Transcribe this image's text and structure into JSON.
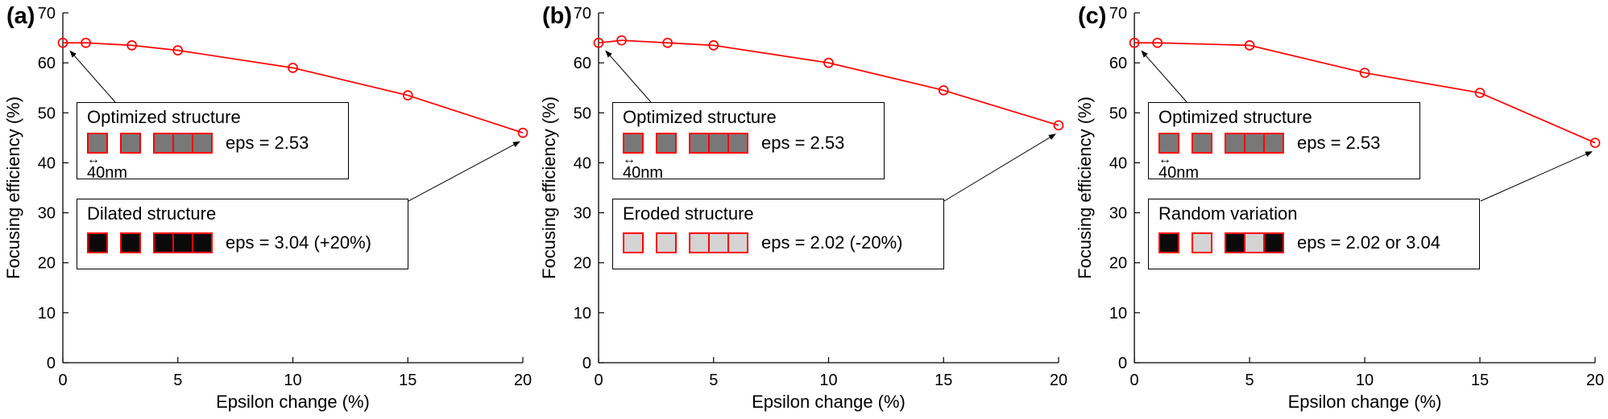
{
  "icons": {
    "double_arrow": "↔"
  },
  "panels": [
    {
      "label": "(a)",
      "box1": {
        "title": "Optimized structure",
        "eps": "eps = 2.53",
        "scale_label": "40nm",
        "squares": {
          "border": "#ff0000",
          "groups": [
            [
              "#787878"
            ],
            [
              "#787878"
            ],
            [
              "#787878",
              "#787878",
              "#787878"
            ]
          ]
        }
      },
      "box2": {
        "title": "Dilated structure",
        "eps": "eps = 3.04 (+20%)",
        "squares": {
          "border": "#ff0000",
          "groups": [
            [
              "#0a0a0a"
            ],
            [
              "#0a0a0a"
            ],
            [
              "#0a0a0a",
              "#0a0a0a",
              "#0a0a0a"
            ]
          ]
        }
      }
    },
    {
      "label": "(b)",
      "box1": {
        "title": "Optimized structure",
        "eps": "eps = 2.53",
        "scale_label": "40nm",
        "squares": {
          "border": "#ff0000",
          "groups": [
            [
              "#787878"
            ],
            [
              "#787878"
            ],
            [
              "#787878",
              "#787878",
              "#787878"
            ]
          ]
        }
      },
      "box2": {
        "title": "Eroded structure",
        "eps": "eps = 2.02 (-20%)",
        "squares": {
          "border": "#ff0000",
          "groups": [
            [
              "#d4d4d4"
            ],
            [
              "#d4d4d4"
            ],
            [
              "#d4d4d4",
              "#d4d4d4",
              "#d4d4d4"
            ]
          ]
        }
      }
    },
    {
      "label": "(c)",
      "box1": {
        "title": "Optimized structure",
        "eps": "eps = 2.53",
        "scale_label": "40nm",
        "squares": {
          "border": "#ff0000",
          "groups": [
            [
              "#787878"
            ],
            [
              "#787878"
            ],
            [
              "#787878",
              "#787878",
              "#787878"
            ]
          ]
        }
      },
      "box2": {
        "title": "Random variation",
        "eps": "eps = 2.02 or 3.04",
        "squares": {
          "border": "#ff0000",
          "groups": [
            [
              "#0a0a0a"
            ],
            [
              "#d4d4d4"
            ],
            [
              "#0a0a0a",
              "#d4d4d4",
              "#0a0a0a"
            ]
          ]
        }
      }
    }
  ],
  "chart_data": [
    {
      "type": "line",
      "panel": "(a)",
      "x": [
        0,
        1,
        3,
        5,
        10,
        15,
        20
      ],
      "y": [
        64,
        64,
        63.5,
        62.5,
        59,
        53.5,
        46
      ],
      "xlabel": "Epsilon change (%)",
      "ylabel": "Focusing efficiency (%)",
      "xlim": [
        0,
        20
      ],
      "ylim": [
        0,
        70
      ],
      "xticks": [
        0,
        5,
        10,
        15,
        20
      ],
      "yticks": [
        0,
        10,
        20,
        30,
        40,
        50,
        60,
        70
      ],
      "line_color": "#ff0000",
      "marker": "open-circle",
      "grid": false,
      "legend": null
    },
    {
      "type": "line",
      "panel": "(b)",
      "x": [
        0,
        1,
        3,
        5,
        10,
        15,
        20
      ],
      "y": [
        64,
        64.5,
        64,
        63.5,
        60,
        54.5,
        47.5
      ],
      "xlabel": "Epsilon change (%)",
      "ylabel": "Focusing efficiency (%)",
      "xlim": [
        0,
        20
      ],
      "ylim": [
        0,
        70
      ],
      "xticks": [
        0,
        5,
        10,
        15,
        20
      ],
      "yticks": [
        0,
        10,
        20,
        30,
        40,
        50,
        60,
        70
      ],
      "line_color": "#ff0000",
      "marker": "open-circle",
      "grid": false,
      "legend": null
    },
    {
      "type": "line",
      "panel": "(c)",
      "x": [
        0,
        1,
        5,
        10,
        15,
        20
      ],
      "y": [
        64,
        64,
        63.5,
        58,
        54,
        44
      ],
      "xlabel": "Epsilon change (%)",
      "ylabel": "Focusing efficiency (%)",
      "xlim": [
        0,
        20
      ],
      "ylim": [
        0,
        70
      ],
      "xticks": [
        0,
        5,
        10,
        15,
        20
      ],
      "yticks": [
        0,
        10,
        20,
        30,
        40,
        50,
        60,
        70
      ],
      "line_color": "#ff0000",
      "marker": "open-circle",
      "grid": false,
      "legend": null
    }
  ]
}
